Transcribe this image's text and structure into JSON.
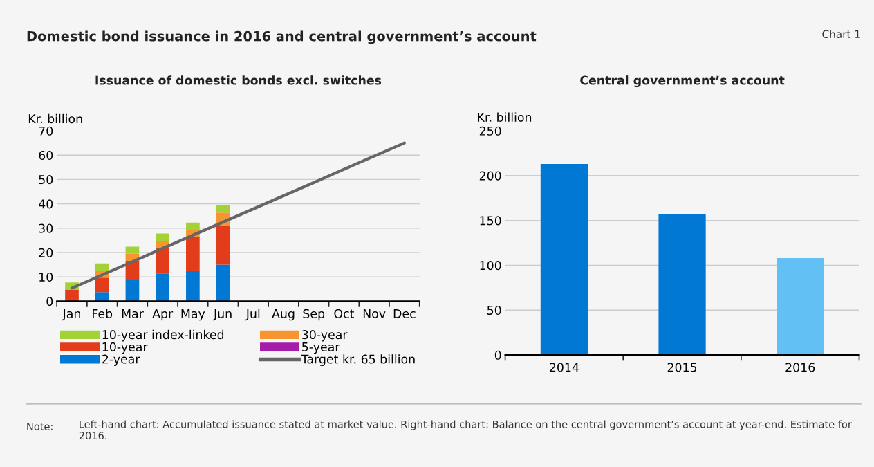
{
  "chart_data": [
    {
      "type": "other",
      "title": "Domestic bond issuance in 2016 and central government’s account",
      "annotations": [
        "Chart 1",
        "Note:",
        "Left-hand chart: Accumulated issuance stated at market value. Right-hand chart: Balance on the central government’s account at year-end. Estimate for 2016."
      ]
    },
    {
      "type": "bar",
      "title": "Issuance of domestic bonds excl. switches",
      "ylabel": "Kr. billion",
      "stacked": true,
      "grid": "y",
      "legend": "bottom",
      "categories": [
        "Jan",
        "Feb",
        "Mar",
        "Apr",
        "May",
        "Jun",
        "Jul",
        "Aug",
        "Sep",
        "Oct",
        "Nov",
        "Dec"
      ],
      "ylim": [
        0,
        70
      ],
      "yticks": [
        0,
        10,
        20,
        30,
        40,
        50,
        60,
        70
      ],
      "series": [
        {
          "name": "2-year",
          "color": "#0078d4",
          "values": [
            0,
            3.7,
            8.6,
            11.4,
            12.6,
            15.0,
            null,
            null,
            null,
            null,
            null,
            null
          ]
        },
        {
          "name": "5-year",
          "color": "#a51ea8",
          "values": [
            0,
            0,
            0,
            0,
            0,
            0,
            null,
            null,
            null,
            null,
            null,
            null
          ]
        },
        {
          "name": "10-year",
          "color": "#e23c1a",
          "values": [
            4.8,
            6.0,
            8.0,
            10.5,
            13.7,
            16.0,
            null,
            null,
            null,
            null,
            null,
            null
          ]
        },
        {
          "name": "30-year",
          "color": "#f79530",
          "values": [
            null,
            2.9,
            2.9,
            2.9,
            3.0,
            5.4,
            null,
            null,
            null,
            null,
            null,
            null
          ]
        },
        {
          "name": "10-year index-linked",
          "color": "#a2d235",
          "values": [
            2.9,
            2.9,
            2.9,
            3.0,
            3.0,
            3.1,
            null,
            null,
            null,
            null,
            null,
            null
          ]
        },
        {
          "name": "Target kr. 65 billion",
          "type": "line",
          "color": "#666666",
          "values": [
            5.4,
            10.8,
            16.2,
            21.7,
            27.1,
            32.5,
            37.9,
            43.3,
            48.7,
            54.2,
            59.6,
            65
          ]
        }
      ]
    },
    {
      "type": "bar",
      "title": "Central government’s account",
      "ylabel": "Kr. billion",
      "grid": "y",
      "categories": [
        "2014",
        "2015",
        "2016"
      ],
      "values": [
        213,
        157,
        108
      ],
      "colors": [
        "#0078d4",
        "#0078d4",
        "#62c0f4"
      ],
      "ylim": [
        0,
        250
      ],
      "yticks": [
        0,
        50,
        100,
        150,
        200,
        250
      ]
    }
  ]
}
